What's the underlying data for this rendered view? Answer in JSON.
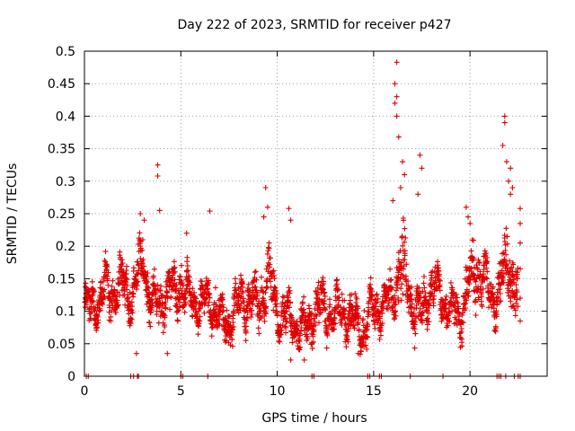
{
  "chart_data": {
    "type": "scatter",
    "title": "Day 222 of 2023, SRMTID for receiver p427",
    "xlabel": "GPS time / hours",
    "ylabel": "SRMTID / TECUs",
    "xlim": [
      0,
      24
    ],
    "ylim": [
      0,
      0.5
    ],
    "x_ticks": [
      0,
      5,
      10,
      15,
      20
    ],
    "y_ticks": [
      0,
      0.05,
      0.1,
      0.15,
      0.2,
      0.25,
      0.3,
      0.35,
      0.4,
      0.45,
      0.5
    ],
    "grid": true,
    "marker": "+",
    "color": "#e00000",
    "series": [
      {
        "name": "SRMTID",
        "trend": {
          "x": [
            0,
            0.5,
            1,
            1.5,
            2,
            2.5,
            3,
            3.5,
            4,
            4.5,
            5,
            5.5,
            6,
            6.5,
            7,
            7.5,
            8,
            8.5,
            9,
            9.5,
            10,
            10.5,
            11,
            11.5,
            12,
            12.5,
            13,
            13.5,
            14,
            14.5,
            15,
            15.5,
            16,
            16.5,
            17,
            17.5,
            18,
            18.5,
            19,
            19.5,
            20,
            20.5,
            21,
            21.5,
            22,
            22.5
          ],
          "y": [
            0.1,
            0.11,
            0.13,
            0.13,
            0.14,
            0.12,
            0.18,
            0.11,
            0.12,
            0.13,
            0.14,
            0.12,
            0.11,
            0.12,
            0.09,
            0.08,
            0.11,
            0.12,
            0.11,
            0.15,
            0.1,
            0.09,
            0.08,
            0.07,
            0.11,
            0.1,
            0.09,
            0.1,
            0.08,
            0.07,
            0.1,
            0.11,
            0.12,
            0.17,
            0.11,
            0.09,
            0.15,
            0.12,
            0.1,
            0.09,
            0.15,
            0.16,
            0.12,
            0.13,
            0.17,
            0.13
          ],
          "spread": [
            0.03,
            0.035,
            0.04,
            0.04,
            0.04,
            0.04,
            0.05,
            0.04,
            0.04,
            0.04,
            0.04,
            0.04,
            0.04,
            0.04,
            0.035,
            0.035,
            0.035,
            0.04,
            0.04,
            0.06,
            0.04,
            0.035,
            0.035,
            0.035,
            0.04,
            0.04,
            0.035,
            0.035,
            0.035,
            0.035,
            0.035,
            0.035,
            0.04,
            0.08,
            0.05,
            0.04,
            0.05,
            0.04,
            0.035,
            0.035,
            0.05,
            0.05,
            0.04,
            0.04,
            0.07,
            0.05
          ]
        },
        "peaks": [
          {
            "x": 2.9,
            "y": 0.25
          },
          {
            "x": 3.1,
            "y": 0.24
          },
          {
            "x": 3.8,
            "y": 0.325
          },
          {
            "x": 3.8,
            "y": 0.308
          },
          {
            "x": 3.9,
            "y": 0.255
          },
          {
            "x": 5.3,
            "y": 0.22
          },
          {
            "x": 6.5,
            "y": 0.254
          },
          {
            "x": 9.4,
            "y": 0.29
          },
          {
            "x": 9.5,
            "y": 0.26
          },
          {
            "x": 9.3,
            "y": 0.245
          },
          {
            "x": 10.6,
            "y": 0.258
          },
          {
            "x": 10.7,
            "y": 0.24
          },
          {
            "x": 16.2,
            "y": 0.483
          },
          {
            "x": 16.1,
            "y": 0.45
          },
          {
            "x": 16.2,
            "y": 0.43
          },
          {
            "x": 16.1,
            "y": 0.42
          },
          {
            "x": 16.2,
            "y": 0.4
          },
          {
            "x": 16.3,
            "y": 0.368
          },
          {
            "x": 16.5,
            "y": 0.33
          },
          {
            "x": 16.6,
            "y": 0.31
          },
          {
            "x": 16.4,
            "y": 0.29
          },
          {
            "x": 16.0,
            "y": 0.27
          },
          {
            "x": 17.4,
            "y": 0.34
          },
          {
            "x": 17.5,
            "y": 0.32
          },
          {
            "x": 17.3,
            "y": 0.28
          },
          {
            "x": 19.8,
            "y": 0.26
          },
          {
            "x": 19.9,
            "y": 0.245
          },
          {
            "x": 20.0,
            "y": 0.235
          },
          {
            "x": 21.8,
            "y": 0.4
          },
          {
            "x": 21.8,
            "y": 0.39
          },
          {
            "x": 21.7,
            "y": 0.355
          },
          {
            "x": 21.9,
            "y": 0.33
          },
          {
            "x": 22.1,
            "y": 0.32
          },
          {
            "x": 22.0,
            "y": 0.3
          },
          {
            "x": 22.2,
            "y": 0.29
          },
          {
            "x": 22.1,
            "y": 0.28
          },
          {
            "x": 22.6,
            "y": 0.258
          },
          {
            "x": 22.6,
            "y": 0.235
          },
          {
            "x": 22.6,
            "y": 0.205
          },
          {
            "x": 22.6,
            "y": 0.165
          },
          {
            "x": 22.6,
            "y": 0.12
          },
          {
            "x": 22.6,
            "y": 0.085
          },
          {
            "x": 2.7,
            "y": 0.035
          },
          {
            "x": 4.3,
            "y": 0.035
          },
          {
            "x": 10.7,
            "y": 0.025
          },
          {
            "x": 11.4,
            "y": 0.025
          },
          {
            "x": 14.2,
            "y": 0.035
          }
        ],
        "zeros": [
          0.1,
          0.2,
          2.4,
          2.55,
          2.75,
          2.8,
          5.0,
          5.1,
          6.4,
          11.8,
          11.9,
          14.7,
          14.8,
          15.3,
          15.4,
          16.9,
          18.6,
          21.4,
          21.5,
          21.6,
          21.85,
          22.3,
          22.5,
          22.6
        ]
      }
    ]
  }
}
